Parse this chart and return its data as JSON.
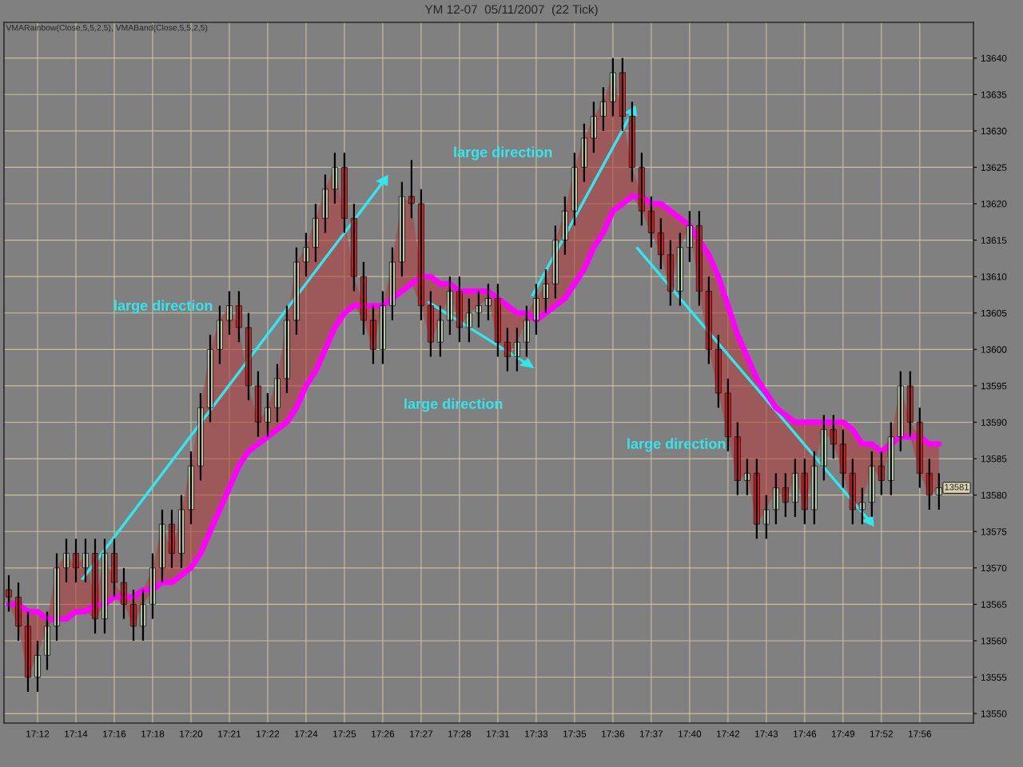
{
  "chart_data": {
    "type": "candlestick",
    "title": "YM 12-07  05/11/2007  (22 Tick)",
    "subtitle": "VMARainbow(Close,5,5,2,5), VMABand(Close,5,5,2,5)",
    "categories": [
      null,
      null,
      null,
      "17:12",
      null,
      null,
      null,
      "17:14",
      null,
      null,
      null,
      "17:16",
      null,
      null,
      null,
      "17:18",
      null,
      null,
      null,
      "17:20",
      null,
      null,
      null,
      "17:21",
      null,
      null,
      null,
      "17:22",
      null,
      null,
      null,
      "17:24",
      null,
      null,
      null,
      "17:25",
      null,
      null,
      null,
      "17:26",
      null,
      null,
      null,
      "17:27",
      null,
      null,
      null,
      "17:28",
      null,
      null,
      null,
      "17:31",
      null,
      null,
      null,
      "17:33",
      null,
      null,
      null,
      "17:35",
      null,
      null,
      null,
      "17:36",
      null,
      null,
      null,
      "17:37",
      null,
      null,
      null,
      "17:40",
      null,
      null,
      null,
      "17:42",
      null,
      null,
      null,
      "17:43",
      null,
      null,
      null,
      "17:46",
      null,
      null,
      null,
      "17:49",
      null,
      null,
      null,
      "17:52",
      null,
      null,
      null,
      "17:56",
      null,
      null
    ],
    "ohlc": [
      [
        13567,
        13569,
        13564,
        13566
      ],
      [
        13566,
        13568,
        13560,
        13562
      ],
      [
        13562,
        13564,
        13553,
        13555
      ],
      [
        13555,
        13560,
        13553,
        13558
      ],
      [
        13558,
        13564,
        13556,
        13562
      ],
      [
        13562,
        13572,
        13560,
        13570
      ],
      [
        13570,
        13574,
        13568,
        13572
      ],
      [
        13572,
        13574,
        13568,
        13570
      ],
      [
        13570,
        13574,
        13568,
        13572
      ],
      [
        13572,
        13574,
        13561,
        13563
      ],
      [
        13563,
        13574,
        13561,
        13572
      ],
      [
        13572,
        13574,
        13566,
        13568
      ],
      [
        13568,
        13570,
        13563,
        13565
      ],
      [
        13565,
        13567,
        13560,
        13562
      ],
      [
        13562,
        13567,
        13560,
        13565
      ],
      [
        13565,
        13572,
        13563,
        13570
      ],
      [
        13570,
        13578,
        13568,
        13576
      ],
      [
        13576,
        13578,
        13570,
        13572
      ],
      [
        13572,
        13580,
        13570,
        13578
      ],
      [
        13578,
        13586,
        13576,
        13584
      ],
      [
        13584,
        13594,
        13582,
        13592
      ],
      [
        13592,
        13602,
        13590,
        13600
      ],
      [
        13600,
        13606,
        13598,
        13604
      ],
      [
        13604,
        13608,
        13602,
        13606
      ],
      [
        13606,
        13608,
        13601,
        13603
      ],
      [
        13603,
        13605,
        13593,
        13595
      ],
      [
        13595,
        13597,
        13588,
        13590
      ],
      [
        13590,
        13594,
        13588,
        13592
      ],
      [
        13592,
        13598,
        13590,
        13596
      ],
      [
        13596,
        13606,
        13594,
        13604
      ],
      [
        13604,
        13614,
        13602,
        13612
      ],
      [
        13612,
        13616,
        13610,
        13614
      ],
      [
        13614,
        13620,
        13612,
        13618
      ],
      [
        13618,
        13624,
        13616,
        13622
      ],
      [
        13622,
        13627,
        13620,
        13625
      ],
      [
        13625,
        13627,
        13616,
        13618
      ],
      [
        13618,
        13620,
        13608,
        13610
      ],
      [
        13610,
        13612,
        13602,
        13604
      ],
      [
        13604,
        13606,
        13598,
        13600
      ],
      [
        13600,
        13608,
        13598,
        13606
      ],
      [
        13606,
        13614,
        13604,
        13612
      ],
      [
        13612,
        13623,
        13610,
        13621
      ],
      [
        13621,
        13626,
        13618,
        13620
      ],
      [
        13620,
        13622,
        13604,
        13606
      ],
      [
        13606,
        13608,
        13599,
        13601
      ],
      [
        13601,
        13606,
        13599,
        13604
      ],
      [
        13604,
        13610,
        13602,
        13608
      ],
      [
        13608,
        13610,
        13601,
        13603
      ],
      [
        13603,
        13607,
        13601,
        13605
      ],
      [
        13605,
        13608,
        13603,
        13606
      ],
      [
        13606,
        13609,
        13604,
        13607
      ],
      [
        13607,
        13609,
        13599,
        13601
      ],
      [
        13601,
        13603,
        13597,
        13599
      ],
      [
        13599,
        13603,
        13597,
        13601
      ],
      [
        13601,
        13606,
        13599,
        13604
      ],
      [
        13604,
        13609,
        13602,
        13607
      ],
      [
        13607,
        13611,
        13605,
        13609
      ],
      [
        13609,
        13617,
        13607,
        13615
      ],
      [
        13615,
        13621,
        13613,
        13619
      ],
      [
        13619,
        13627,
        13617,
        13625
      ],
      [
        13625,
        13631,
        13623,
        13629
      ],
      [
        13629,
        13634,
        13627,
        13632
      ],
      [
        13632,
        13636,
        13630,
        13634
      ],
      [
        13634,
        13640,
        13632,
        13638
      ],
      [
        13638,
        13640,
        13630,
        13632
      ],
      [
        13632,
        13634,
        13623,
        13625
      ],
      [
        13625,
        13627,
        13617,
        13619
      ],
      [
        13619,
        13621,
        13614,
        13616
      ],
      [
        13616,
        13618,
        13611,
        13613
      ],
      [
        13613,
        13615,
        13606,
        13608
      ],
      [
        13608,
        13616,
        13606,
        13614
      ],
      [
        13614,
        13619,
        13612,
        13617
      ],
      [
        13617,
        13619,
        13606,
        13608
      ],
      [
        13608,
        13610,
        13598,
        13600
      ],
      [
        13600,
        13602,
        13592,
        13594
      ],
      [
        13594,
        13596,
        13586,
        13588
      ],
      [
        13588,
        13590,
        13580,
        13582
      ],
      [
        13582,
        13585,
        13580,
        13583
      ],
      [
        13583,
        13585,
        13574,
        13576
      ],
      [
        13576,
        13580,
        13574,
        13578
      ],
      [
        13578,
        13583,
        13576,
        13581
      ],
      [
        13581,
        13583,
        13577,
        13579
      ],
      [
        13579,
        13585,
        13577,
        13583
      ],
      [
        13583,
        13585,
        13576,
        13578
      ],
      [
        13578,
        13586,
        13576,
        13584
      ],
      [
        13584,
        13591,
        13582,
        13589
      ],
      [
        13589,
        13591,
        13585,
        13587
      ],
      [
        13587,
        13589,
        13581,
        13583
      ],
      [
        13583,
        13585,
        13576,
        13578
      ],
      [
        13578,
        13581,
        13576,
        13579
      ],
      [
        13579,
        13586,
        13577,
        13584
      ],
      [
        13584,
        13586,
        13580,
        13582
      ],
      [
        13582,
        13590,
        13580,
        13588
      ],
      [
        13588,
        13597,
        13586,
        13595
      ],
      [
        13595,
        13597,
        13588,
        13590
      ],
      [
        13590,
        13592,
        13581,
        13583
      ],
      [
        13583,
        13585,
        13578,
        13580
      ],
      [
        13580,
        13583,
        13578,
        13581
      ]
    ],
    "series": [
      {
        "type": "line",
        "color": "#ff00ff",
        "values": [
          13565,
          13565,
          13564,
          13564,
          13563,
          13563,
          13563,
          13564,
          13564,
          13565,
          13565,
          13566,
          13566,
          13566,
          13567,
          13567,
          13568,
          13568,
          13569,
          13570,
          13572,
          13575,
          13578,
          13581,
          13584,
          13586,
          13587,
          13588,
          13589,
          13590,
          13592,
          13595,
          13597,
          13600,
          13603,
          13605,
          13606,
          13606,
          13606,
          13606,
          13607,
          13608,
          13609,
          13610,
          13610,
          13609,
          13609,
          13608,
          13608,
          13608,
          13608,
          13607,
          13606,
          13605,
          13605,
          13604,
          13605,
          13606,
          13607,
          13609,
          13611,
          13614,
          13616,
          13619,
          13620,
          13621,
          13621,
          13620,
          13620,
          13619,
          13618,
          13617,
          13615,
          13613,
          13610,
          13606,
          13602,
          13599,
          13596,
          13594,
          13592,
          13591,
          13590,
          13590,
          13590,
          13590,
          13590,
          13590,
          13589,
          13587,
          13587,
          13586,
          13587,
          13588,
          13588,
          13588,
          13587,
          13587
        ],
        "lower": [
          13565,
          13562,
          13555,
          13558,
          13562,
          13563,
          13563,
          13564,
          13564,
          13563,
          13565,
          13566,
          13565,
          13562,
          13565,
          13567,
          13568,
          13568,
          13569,
          13570,
          13572,
          13575,
          13578,
          13581,
          13584,
          13586,
          13587,
          13588,
          13589,
          13590,
          13592,
          13595,
          13597,
          13600,
          13603,
          13605,
          13606,
          13604,
          13600,
          13606,
          13607,
          13608,
          13609,
          13606,
          13601,
          13604,
          13608,
          13603,
          13605,
          13606,
          13607,
          13601,
          13599,
          13601,
          13604,
          13604,
          13605,
          13606,
          13607,
          13609,
          13611,
          13614,
          13616,
          13619,
          13620,
          13621,
          13619,
          13616,
          13613,
          13608,
          13614,
          13617,
          13608,
          13600,
          13594,
          13588,
          13582,
          13583,
          13576,
          13578,
          13581,
          13579,
          13583,
          13578,
          13584,
          13589,
          13587,
          13583,
          13578,
          13579,
          13584,
          13582,
          13587,
          13588,
          13588,
          13583,
          13580,
          13581
        ],
        "upper": [
          13566,
          13565,
          13564,
          13564,
          13563,
          13570,
          13572,
          13570,
          13572,
          13565,
          13572,
          13568,
          13566,
          13566,
          13567,
          13570,
          13576,
          13572,
          13578,
          13584,
          13592,
          13600,
          13604,
          13606,
          13603,
          13595,
          13590,
          13592,
          13596,
          13604,
          13612,
          13614,
          13618,
          13622,
          13625,
          13618,
          13610,
          13606,
          13606,
          13606,
          13612,
          13621,
          13620,
          13610,
          13610,
          13609,
          13609,
          13608,
          13608,
          13608,
          13608,
          13607,
          13606,
          13605,
          13605,
          13607,
          13609,
          13615,
          13619,
          13625,
          13629,
          13632,
          13634,
          13638,
          13632,
          13625,
          13621,
          13620,
          13620,
          13619,
          13618,
          13617,
          13615,
          13613,
          13610,
          13606,
          13602,
          13599,
          13596,
          13594,
          13592,
          13591,
          13590,
          13590,
          13590,
          13590,
          13590,
          13590,
          13589,
          13587,
          13587,
          13586,
          13588,
          13595,
          13590,
          13588,
          13587,
          13587
        ]
      }
    ],
    "ylim": [
      13548.7,
      13644.9
    ],
    "yticks": [
      13550,
      13555,
      13560,
      13565,
      13570,
      13575,
      13580,
      13585,
      13590,
      13595,
      13600,
      13605,
      13610,
      13615,
      13620,
      13625,
      13630,
      13635,
      13640
    ],
    "grid": true,
    "annotations": [
      "large direction",
      "large direction",
      "large direction",
      "large direction",
      "13581"
    ]
  }
}
